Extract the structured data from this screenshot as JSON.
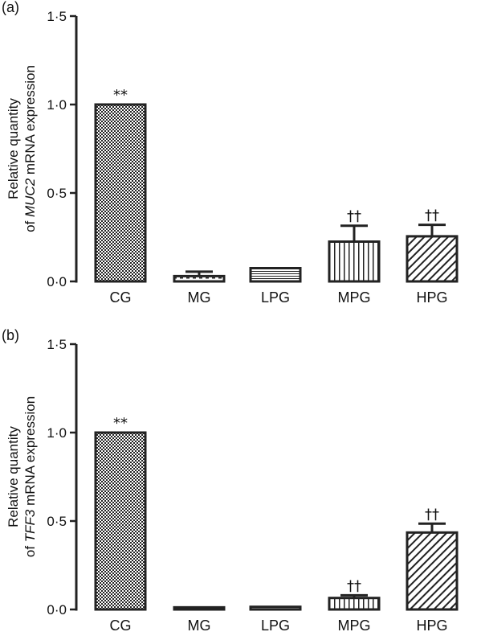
{
  "chart_data": [
    {
      "type": "bar",
      "panel_label": "(a)",
      "ylabel_line1": "Relative quantity",
      "ylabel_line2_prefix": "of ",
      "ylabel_line2_gene": "MUC2",
      "ylabel_line2_suffix": " mRNA expression",
      "ylim": [
        0,
        1.5
      ],
      "yticks": [
        0,
        0.5,
        1.0,
        1.5
      ],
      "ytick_labels": [
        "0·0",
        "0·5",
        "1·0",
        "1·5"
      ],
      "categories": [
        "CG",
        "MG",
        "LPG",
        "MPG",
        "HPG"
      ],
      "values": [
        1.0,
        0.03,
        0.075,
        0.225,
        0.255
      ],
      "errors": [
        0,
        0.025,
        0,
        0.09,
        0.065
      ],
      "annotations": [
        "**",
        "",
        "",
        "††",
        "††"
      ],
      "patterns": [
        "checker",
        "dashes",
        "hlines",
        "vlines",
        "diagonal"
      ]
    },
    {
      "type": "bar",
      "panel_label": "(b)",
      "ylabel_line1": "Relative quantity",
      "ylabel_line2_prefix": "of ",
      "ylabel_line2_gene": "TFF3",
      "ylabel_line2_suffix": " mRNA expression",
      "ylim": [
        0,
        1.5
      ],
      "yticks": [
        0,
        0.5,
        1.0,
        1.5
      ],
      "ytick_labels": [
        "0·0",
        "0·5",
        "1·0",
        "1·5"
      ],
      "categories": [
        "CG",
        "MG",
        "LPG",
        "MPG",
        "HPG"
      ],
      "values": [
        1.0,
        0.012,
        0.015,
        0.065,
        0.435
      ],
      "errors": [
        0,
        0,
        0,
        0.015,
        0.05
      ],
      "annotations": [
        "**",
        "",
        "",
        "††",
        "††"
      ],
      "patterns": [
        "checker",
        "dashes",
        "hlines",
        "vlines",
        "diagonal"
      ]
    }
  ],
  "colors": {
    "ink": "#222222",
    "background": "#ffffff"
  }
}
